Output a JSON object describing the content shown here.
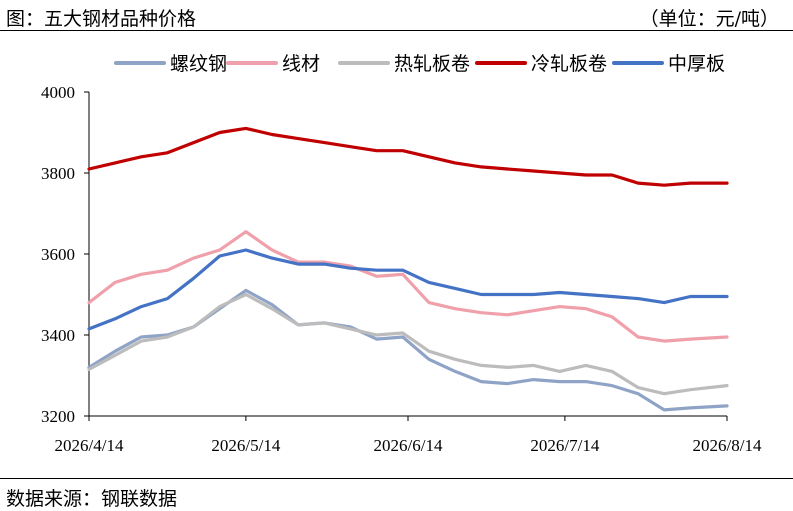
{
  "header": {
    "title": "图：五大钢材品种价格",
    "unit": "（单位：元/吨）"
  },
  "footer": {
    "source": "数据来源：钢联数据"
  },
  "chart_data": {
    "type": "line",
    "title": "",
    "xlabel": "",
    "ylabel": "",
    "ylim": [
      3200,
      4000
    ],
    "yticks": [
      3200,
      3400,
      3600,
      3800,
      4000
    ],
    "x_start": "2026/4/14",
    "x_end": "2026/8/14",
    "xticks": [
      "2026/4/14",
      "2026/5/14",
      "2026/6/14",
      "2026/7/14",
      "2026/8/14"
    ],
    "grid": false,
    "legend_position": "top",
    "x": [
      "2026/4/14",
      "2026/4/19",
      "2026/4/24",
      "2026/4/29",
      "2026/5/4",
      "2026/5/9",
      "2026/5/14",
      "2026/5/19",
      "2026/5/24",
      "2026/5/29",
      "2026/6/3",
      "2026/6/8",
      "2026/6/13",
      "2026/6/18",
      "2026/6/23",
      "2026/6/28",
      "2026/7/3",
      "2026/7/8",
      "2026/7/13",
      "2026/7/18",
      "2026/7/23",
      "2026/7/28",
      "2026/8/2",
      "2026/8/7",
      "2026/8/14"
    ],
    "series": [
      {
        "name": "螺纹钢",
        "color": "#8fa3c7",
        "values": [
          3320,
          3360,
          3395,
          3400,
          3420,
          3465,
          3510,
          3475,
          3425,
          3430,
          3420,
          3390,
          3395,
          3340,
          3310,
          3285,
          3280,
          3290,
          3285,
          3285,
          3275,
          3255,
          3215,
          3220,
          3225
        ]
      },
      {
        "name": "线材",
        "color": "#f0a0aa",
        "values": [
          3480,
          3530,
          3550,
          3560,
          3590,
          3610,
          3655,
          3610,
          3580,
          3580,
          3570,
          3545,
          3550,
          3480,
          3465,
          3455,
          3450,
          3460,
          3470,
          3465,
          3445,
          3395,
          3385,
          3390,
          3395
        ]
      },
      {
        "name": "热轧板卷",
        "color": "#bcbcbc",
        "values": [
          3315,
          3350,
          3385,
          3395,
          3420,
          3470,
          3500,
          3465,
          3425,
          3430,
          3415,
          3400,
          3405,
          3360,
          3340,
          3325,
          3320,
          3325,
          3310,
          3325,
          3310,
          3270,
          3255,
          3265,
          3275
        ]
      },
      {
        "name": "冷轧板卷",
        "color": "#c00000",
        "values": [
          3810,
          3825,
          3840,
          3850,
          3875,
          3900,
          3910,
          3895,
          3885,
          3875,
          3865,
          3855,
          3855,
          3840,
          3825,
          3815,
          3810,
          3805,
          3800,
          3795,
          3795,
          3775,
          3770,
          3775,
          3775
        ]
      },
      {
        "name": "中厚板",
        "color": "#4472c4",
        "values": [
          3415,
          3440,
          3470,
          3490,
          3540,
          3595,
          3610,
          3590,
          3575,
          3575,
          3565,
          3560,
          3560,
          3530,
          3515,
          3500,
          3500,
          3500,
          3505,
          3500,
          3495,
          3490,
          3480,
          3495,
          3495
        ]
      }
    ]
  }
}
